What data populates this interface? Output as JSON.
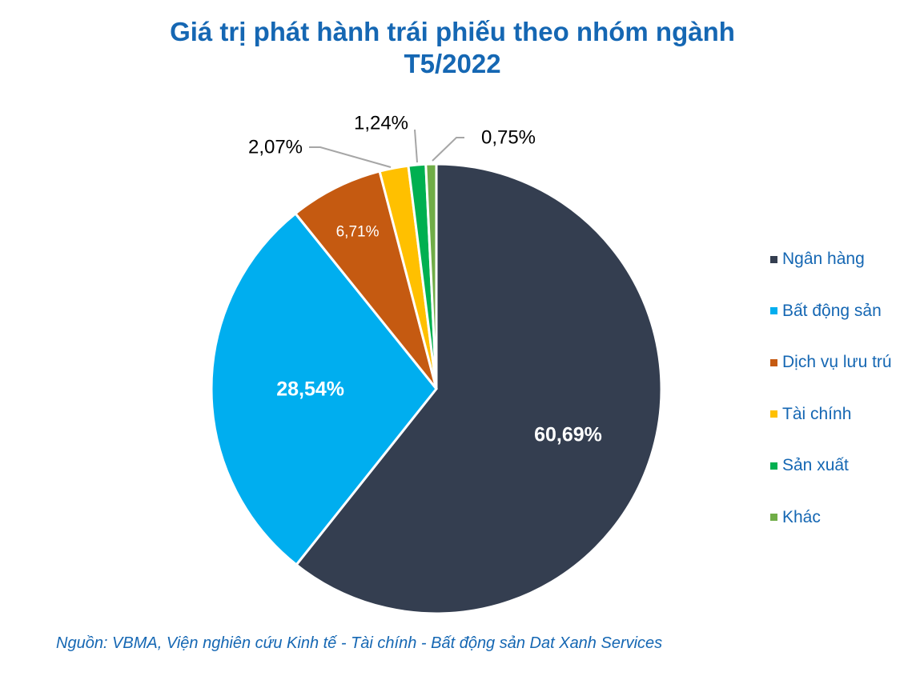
{
  "title_line1": "Giá trị phát hành trái phiếu theo nhóm ngành",
  "title_line2": "T5/2022",
  "source": "Nguồn: VBMA, Viện nghiên cứu Kinh tế - Tài chính - Bất động sản Dat Xanh Services",
  "chart_data": {
    "type": "pie",
    "title": "Giá trị phát hành trái phiếu theo nhóm ngành T5/2022",
    "legend_position": "right",
    "categories": [
      "Ngân hàng",
      "Bất động sản",
      "Dịch vụ lưu trú",
      "Tài chính",
      "Sản xuất",
      "Khác"
    ],
    "values": [
      60.69,
      28.54,
      6.71,
      2.07,
      1.24,
      0.75
    ],
    "labels": [
      "60,69%",
      "28,54%",
      "6,71%",
      "2,07%",
      "1,24%",
      "0,75%"
    ],
    "colors": [
      "#343e50",
      "#00aeef",
      "#c55a11",
      "#ffc000",
      "#00b050",
      "#70ad47"
    ]
  }
}
